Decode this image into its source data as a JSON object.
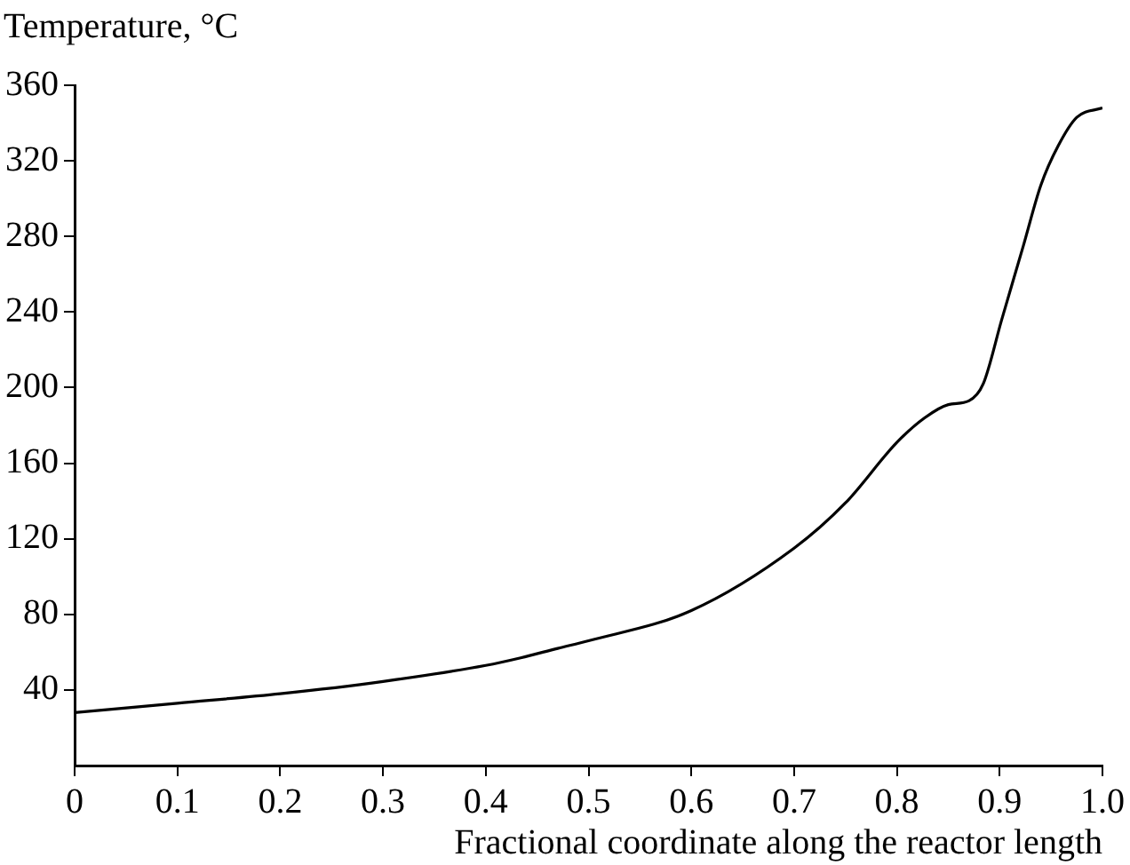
{
  "chart_data": {
    "type": "line",
    "ylabel": "Temperature, °C",
    "xlabel": "Fractional coordinate along the reactor length",
    "x": [
      0,
      0.1,
      0.2,
      0.3,
      0.4,
      0.434,
      0.47,
      0.5,
      0.6,
      0.7,
      0.75,
      0.8,
      0.827,
      0.85,
      0.87,
      0.884,
      0.902,
      0.923,
      0.94,
      0.957,
      0.975,
      1.0
    ],
    "series": [
      {
        "color": "#000000",
        "values": [
          28,
          33,
          38,
          44.5,
          53,
          57,
          62,
          66,
          82,
          115,
          139,
          171,
          184,
          191,
          193,
          202,
          236,
          275,
          307,
          328,
          343,
          348
        ]
      }
    ],
    "xlim": [
      0,
      1
    ],
    "xticks": [
      0,
      0.1,
      0.2,
      0.3,
      0.4,
      0.5,
      0.6,
      0.7,
      0.8,
      0.9,
      {
        "value": 1,
        "label": "1.0"
      }
    ],
    "ylim": [
      0,
      360
    ],
    "yticks": [
      40,
      80,
      120,
      160,
      200,
      240,
      280,
      320,
      360
    ],
    "grid": false,
    "legend": false,
    "marker": "none",
    "line_style": "solid"
  }
}
